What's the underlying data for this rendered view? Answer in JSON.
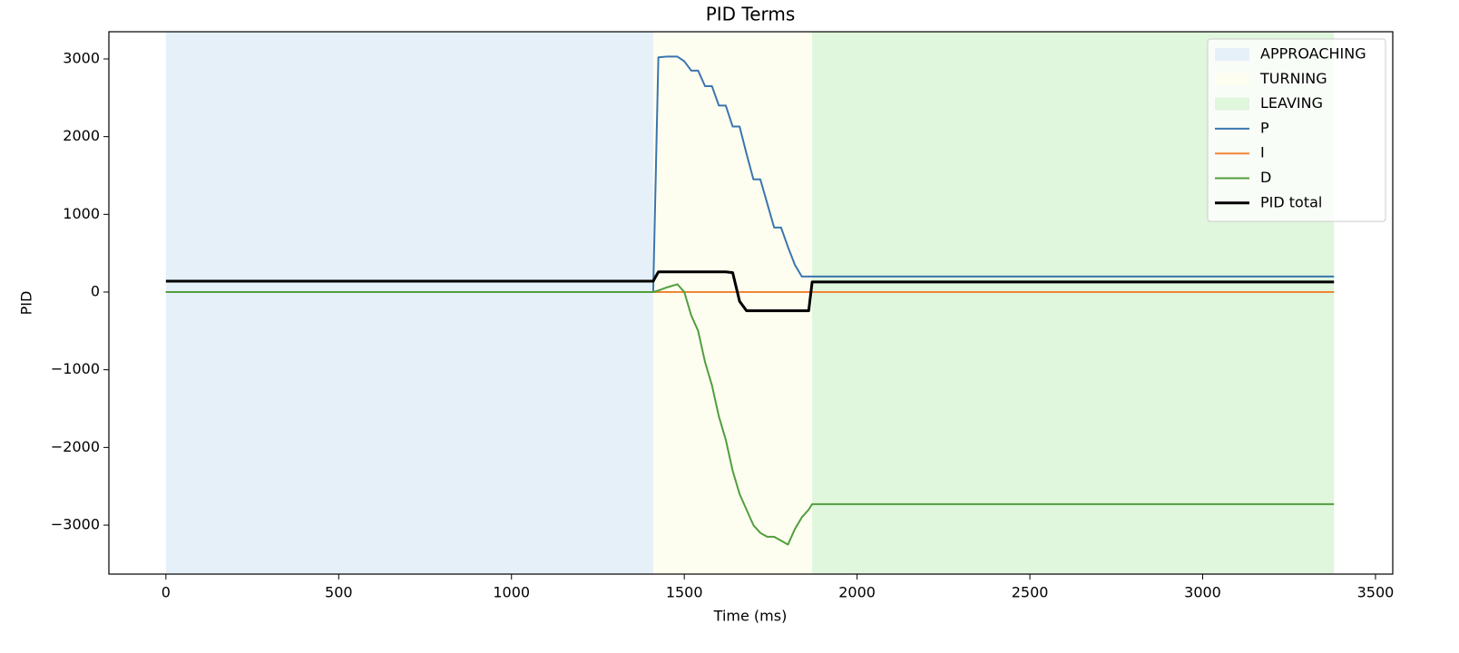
{
  "chart_data": {
    "type": "line",
    "title": "PID Terms",
    "xlabel": "Time (ms)",
    "ylabel": "PID",
    "xlim": [
      -165,
      3550
    ],
    "ylim": [
      -3630,
      3350
    ],
    "xticks": [
      0,
      500,
      1000,
      1500,
      2000,
      2500,
      3000,
      3500
    ],
    "yticks": [
      {
        "value": -3000,
        "label": "−3000"
      },
      {
        "value": -2000,
        "label": "−2000"
      },
      {
        "value": -1000,
        "label": "−1000"
      },
      0,
      1000,
      2000,
      3000
    ],
    "legend": "upper right",
    "regions": [
      {
        "name": "APPROACHING",
        "color": "#e6f0f8",
        "start": 0,
        "end": 1410
      },
      {
        "name": "TURNING",
        "color": "#fefef0",
        "start": 1410,
        "end": 1870
      },
      {
        "name": "LEAVING",
        "color": "#e0f6dd",
        "start": 1870,
        "end": 3380
      }
    ],
    "x": [
      0,
      1410,
      1425,
      1450,
      1480,
      1500,
      1520,
      1540,
      1560,
      1580,
      1600,
      1620,
      1640,
      1660,
      1680,
      1700,
      1720,
      1740,
      1760,
      1780,
      1800,
      1820,
      1840,
      1860,
      1870,
      3380
    ],
    "series": [
      {
        "name": "P",
        "color": "#3b75af",
        "width": 2,
        "values": [
          0,
          0,
          3020,
          3030,
          3030,
          2970,
          2850,
          2850,
          2650,
          2650,
          2400,
          2400,
          2130,
          2130,
          1780,
          1450,
          1450,
          1140,
          830,
          830,
          580,
          350,
          200,
          200,
          200,
          200
        ]
      },
      {
        "name": "I",
        "color": "#ef8636",
        "width": 2,
        "values": [
          0,
          0,
          0,
          0,
          0,
          0,
          0,
          0,
          0,
          0,
          0,
          0,
          0,
          0,
          0,
          0,
          0,
          0,
          0,
          0,
          0,
          0,
          0,
          0,
          0,
          0
        ]
      },
      {
        "name": "D",
        "color": "#519e3e",
        "width": 2,
        "values": [
          0,
          0,
          20,
          60,
          100,
          0,
          -300,
          -500,
          -900,
          -1200,
          -1600,
          -1900,
          -2300,
          -2600,
          -2800,
          -3000,
          -3100,
          -3150,
          -3150,
          -3200,
          -3250,
          -3050,
          -2900,
          -2800,
          -2730,
          -2730
        ]
      },
      {
        "name": "PID total",
        "color": "#000000",
        "width": 3,
        "values": [
          140,
          140,
          260,
          260,
          260,
          260,
          260,
          260,
          260,
          260,
          260,
          260,
          250,
          -120,
          -240,
          -240,
          -240,
          -240,
          -240,
          -240,
          -240,
          -240,
          -240,
          -240,
          130,
          130
        ]
      }
    ]
  }
}
